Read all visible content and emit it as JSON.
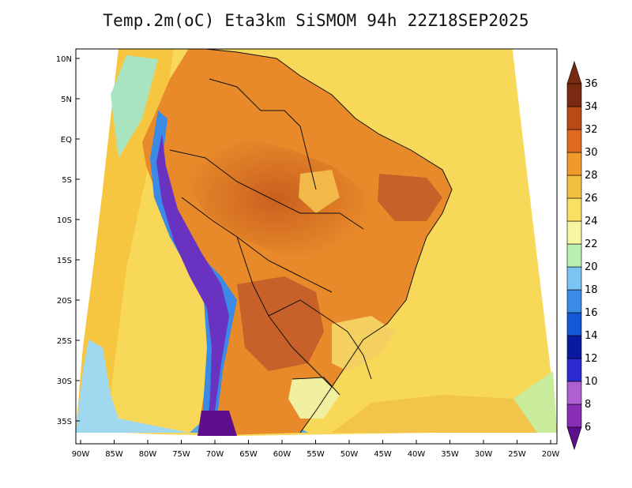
{
  "title": "Temp.2m(oC) Eta3km SiSMOM 94h 22Z18SEP2025",
  "map": {
    "lat_ticks": [
      "10N",
      "5N",
      "EQ",
      "5S",
      "10S",
      "15S",
      "20S",
      "25S",
      "30S",
      "35S"
    ],
    "lon_ticks": [
      "90W",
      "85W",
      "80W",
      "75W",
      "70W",
      "65W",
      "60W",
      "55W",
      "50W",
      "45W",
      "40W",
      "35W",
      "30W",
      "25W",
      "20W"
    ]
  },
  "colorbar": {
    "labels": [
      "6",
      "8",
      "10",
      "12",
      "14",
      "16",
      "18",
      "20",
      "22",
      "24",
      "26",
      "28",
      "30",
      "32",
      "34",
      "36"
    ],
    "colors": [
      "#5e0f8c",
      "#8a2db5",
      "#b05fd0",
      "#2a2ad0",
      "#0a1aa0",
      "#1458d8",
      "#3a8ae6",
      "#7ac4f2",
      "#b8f0b0",
      "#f6f6a0",
      "#f8e060",
      "#f4c040",
      "#f19a2c",
      "#e06a20",
      "#b84a18",
      "#7a2a10"
    ]
  }
}
